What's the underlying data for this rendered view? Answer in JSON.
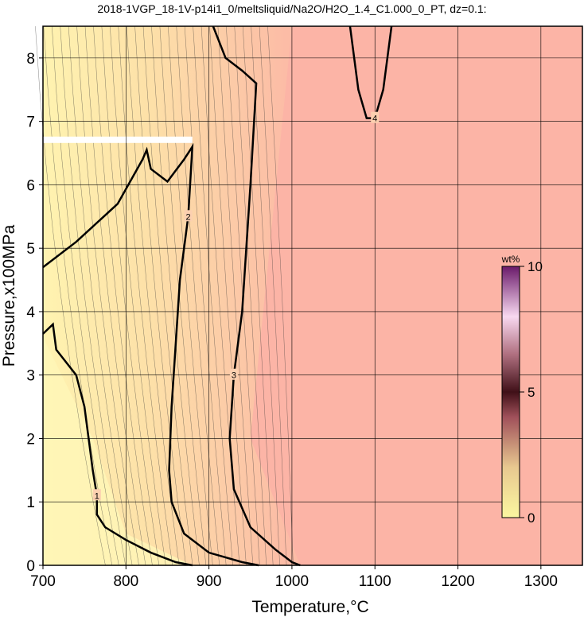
{
  "chart_data": {
    "type": "contour",
    "title": "2018-1VGP_18-1V-p14i1_0/meltsliquid/Na2O/H2O_1.4_C1.000_0_PT, dz=0.1:",
    "x_label": "Temperature,°C",
    "y_label": "Pressure,x100MPa",
    "xlim": [
      700,
      1350
    ],
    "ylim": [
      0,
      8.5
    ],
    "xticks": [
      700,
      800,
      900,
      1000,
      1100,
      1200,
      1300
    ],
    "yticks": [
      0,
      1,
      2,
      3,
      4,
      5,
      6,
      7,
      8
    ],
    "grid": true,
    "colorbar": {
      "label": "wt%",
      "lim": [
        0,
        10
      ],
      "ticks": [
        0,
        5,
        10
      ]
    },
    "contours": [
      {
        "level": 1,
        "x": [
          700,
          712,
          716,
          740,
          750,
          755,
          760,
          765,
          765,
          775,
          800,
          830,
          860,
          880
        ],
        "y": [
          3.65,
          3.8,
          3.4,
          3.0,
          2.5,
          2.0,
          1.5,
          1.1,
          0.8,
          0.6,
          0.4,
          0.2,
          0.05,
          0
        ]
      },
      {
        "level": 2,
        "x": [
          700,
          740,
          790,
          820,
          825,
          830,
          850,
          870,
          880,
          875,
          865,
          860,
          855,
          852,
          855,
          870,
          900,
          940,
          960
        ],
        "y": [
          4.7,
          5.1,
          5.7,
          6.4,
          6.55,
          6.25,
          6.05,
          6.4,
          6.6,
          5.5,
          4.5,
          3.5,
          2.5,
          1.5,
          1.0,
          0.5,
          0.2,
          0.05,
          0
        ]
      },
      {
        "level": 3,
        "x": [
          905,
          920,
          940,
          957,
          950,
          940,
          930,
          925,
          930,
          950,
          980,
          1000,
          1010
        ],
        "y": [
          8.5,
          8.0,
          7.8,
          7.6,
          6.0,
          4.0,
          3.0,
          2.0,
          1.2,
          0.6,
          0.25,
          0.05,
          0
        ]
      },
      {
        "level": 4,
        "x": [
          1070,
          1080,
          1090,
          1100,
          1110,
          1120
        ],
        "y": [
          8.5,
          7.5,
          7.05,
          7.05,
          7.5,
          8.5
        ]
      }
    ]
  }
}
